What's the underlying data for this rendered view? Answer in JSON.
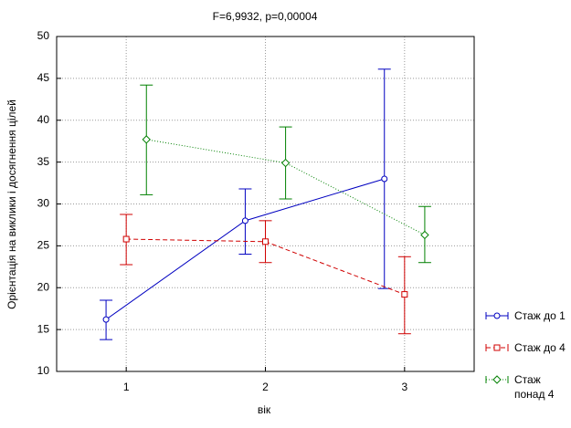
{
  "chart_data": {
    "type": "line",
    "title": "F=6,9932, p=0,00004",
    "x_label": "вік",
    "y_label": "Орієнтація на виклики і досягнення цілей",
    "categories": [
      "1",
      "2",
      "3"
    ],
    "ylim": [
      10,
      50
    ],
    "yticks": [
      10,
      15,
      20,
      25,
      30,
      35,
      40,
      45,
      50
    ],
    "grid": true,
    "legend": "right",
    "series": [
      {
        "name": "Стаж до 1",
        "color": "#0000c0",
        "dash": "solid",
        "marker": "circle",
        "values": [
          16.2,
          28.0,
          33.0
        ],
        "lower": [
          13.8,
          24.0,
          19.9
        ],
        "upper": [
          18.5,
          31.8,
          46.1
        ]
      },
      {
        "name": "Стаж до 4",
        "color": "#d00000",
        "dash": "dashed",
        "marker": "square",
        "values": [
          25.8,
          25.5,
          19.2
        ],
        "lower": [
          22.75,
          23.0,
          14.5
        ],
        "upper": [
          28.75,
          28.0,
          23.7
        ]
      },
      {
        "name": "Стаж понад 4",
        "color": "#008000",
        "dash": "dotted",
        "marker": "diamond",
        "values": [
          37.7,
          34.9,
          26.3
        ],
        "lower": [
          31.1,
          30.6,
          23.0
        ],
        "upper": [
          44.2,
          39.2,
          29.7
        ]
      }
    ]
  }
}
